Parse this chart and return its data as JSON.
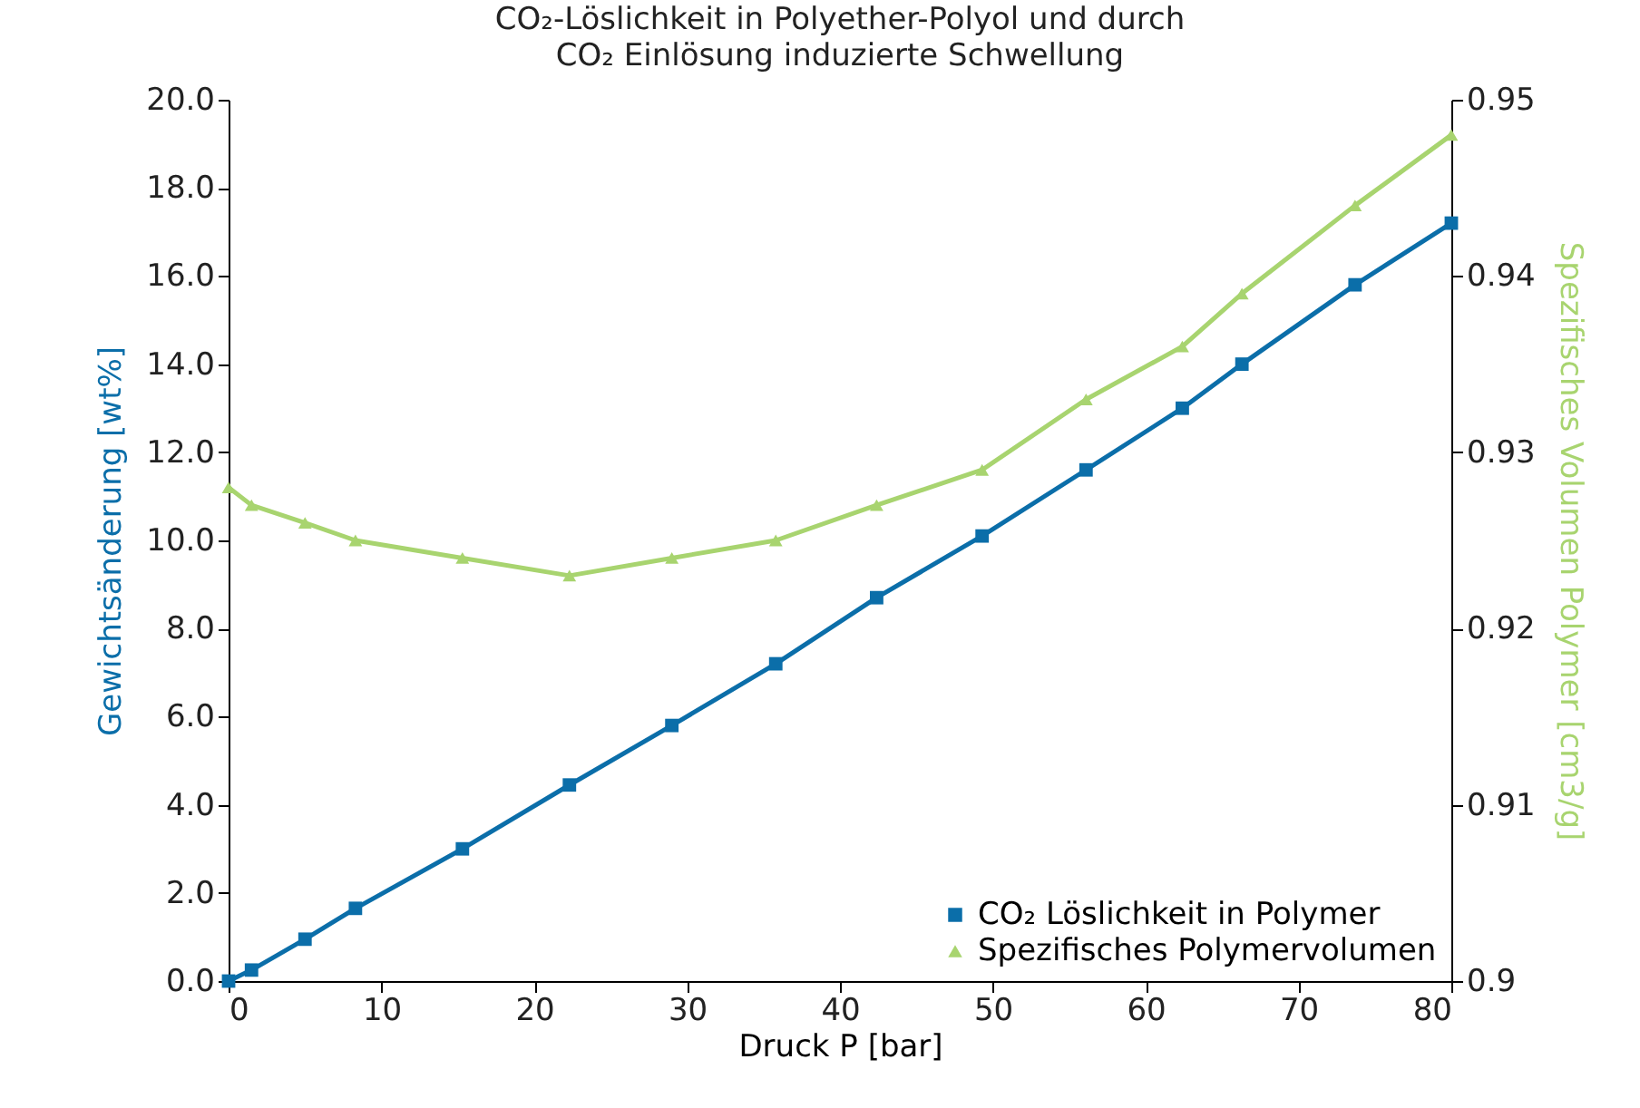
{
  "chart_data": {
    "type": "line",
    "title": [
      "CO₂-Löslichkeit in Polyether-Polyol und durch",
      "CO₂ Einlösung induzierte Schwellung"
    ],
    "xlabel": "Druck P [bar]",
    "ylabel": "Gewichtsänderung [wt%]",
    "y2label": "Spezifisches Volumen Polymer [cm3/g]",
    "x": [
      0,
      1.5,
      5,
      8.3,
      15.3,
      22.3,
      29,
      35.8,
      42.4,
      49.3,
      56.1,
      62.4,
      66.3,
      73.7,
      80
    ],
    "series": [
      {
        "name": "CO₂ Löslichkeit in Polymer",
        "color": "#0b6ea9",
        "marker": "square",
        "values": [
          0,
          0.25,
          0.95,
          1.65,
          3.0,
          4.45,
          5.8,
          7.2,
          8.7,
          10.1,
          11.6,
          13.0,
          14.0,
          15.8,
          17.2
        ]
      },
      {
        "name": "Spezifisches Polymervolumen",
        "color": "#a8d46f",
        "marker": "triangle",
        "axis": "y2",
        "values": [
          0.928,
          0.927,
          0.926,
          0.925,
          0.924,
          0.923,
          0.924,
          0.925,
          0.927,
          0.929,
          0.933,
          0.936,
          0.939,
          0.944,
          0.948
        ]
      }
    ],
    "xlim": [
      0,
      80
    ],
    "xticks": [
      0,
      10,
      20,
      30,
      40,
      50,
      60,
      70,
      80
    ],
    "ylim": [
      0,
      20
    ],
    "yticks": [
      {
        "value": 0,
        "label": "0.0"
      },
      {
        "value": 2,
        "label": "2.0"
      },
      {
        "value": 4,
        "label": "4.0"
      },
      {
        "value": 6,
        "label": "6.0"
      },
      {
        "value": 8,
        "label": "8.0"
      },
      {
        "value": 10,
        "label": "10.0"
      },
      {
        "value": 12,
        "label": "12.0"
      },
      {
        "value": 14,
        "label": "14.0"
      },
      {
        "value": 16,
        "label": "16.0"
      },
      {
        "value": 18,
        "label": "18.0"
      },
      {
        "value": 20,
        "label": "20.0"
      }
    ],
    "y2lim": [
      0.9,
      0.95
    ],
    "y2ticks": [
      0.9,
      0.91,
      0.92,
      0.93,
      0.94,
      0.95
    ],
    "legend": "bottom right",
    "grid": false
  }
}
